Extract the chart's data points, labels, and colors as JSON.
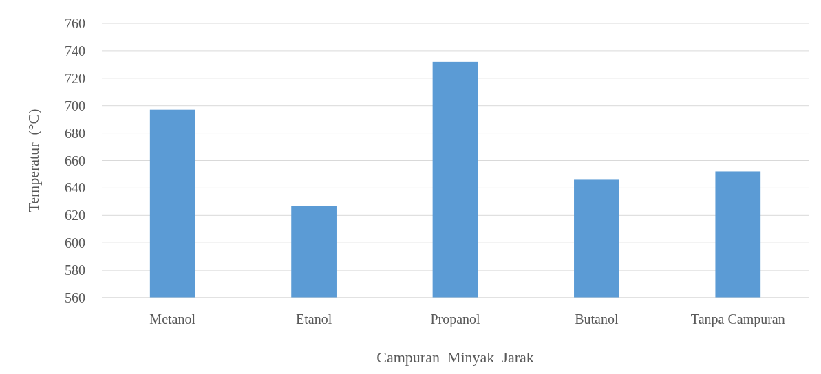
{
  "chart_data": {
    "type": "bar",
    "xlabel": "Campuran  Minyak  Jarak",
    "ylabel": "Temperatur  (°C)",
    "categories": [
      "Metanol",
      "Etanol",
      "Propanol",
      "Butanol",
      "Tanpa Campuran"
    ],
    "values": [
      697,
      627,
      732,
      646,
      652
    ],
    "color": "#5b9bd5",
    "ylim": [
      560,
      760
    ],
    "yticks": [
      560,
      580,
      600,
      620,
      640,
      660,
      680,
      700,
      720,
      740,
      760
    ],
    "grid": "y"
  }
}
